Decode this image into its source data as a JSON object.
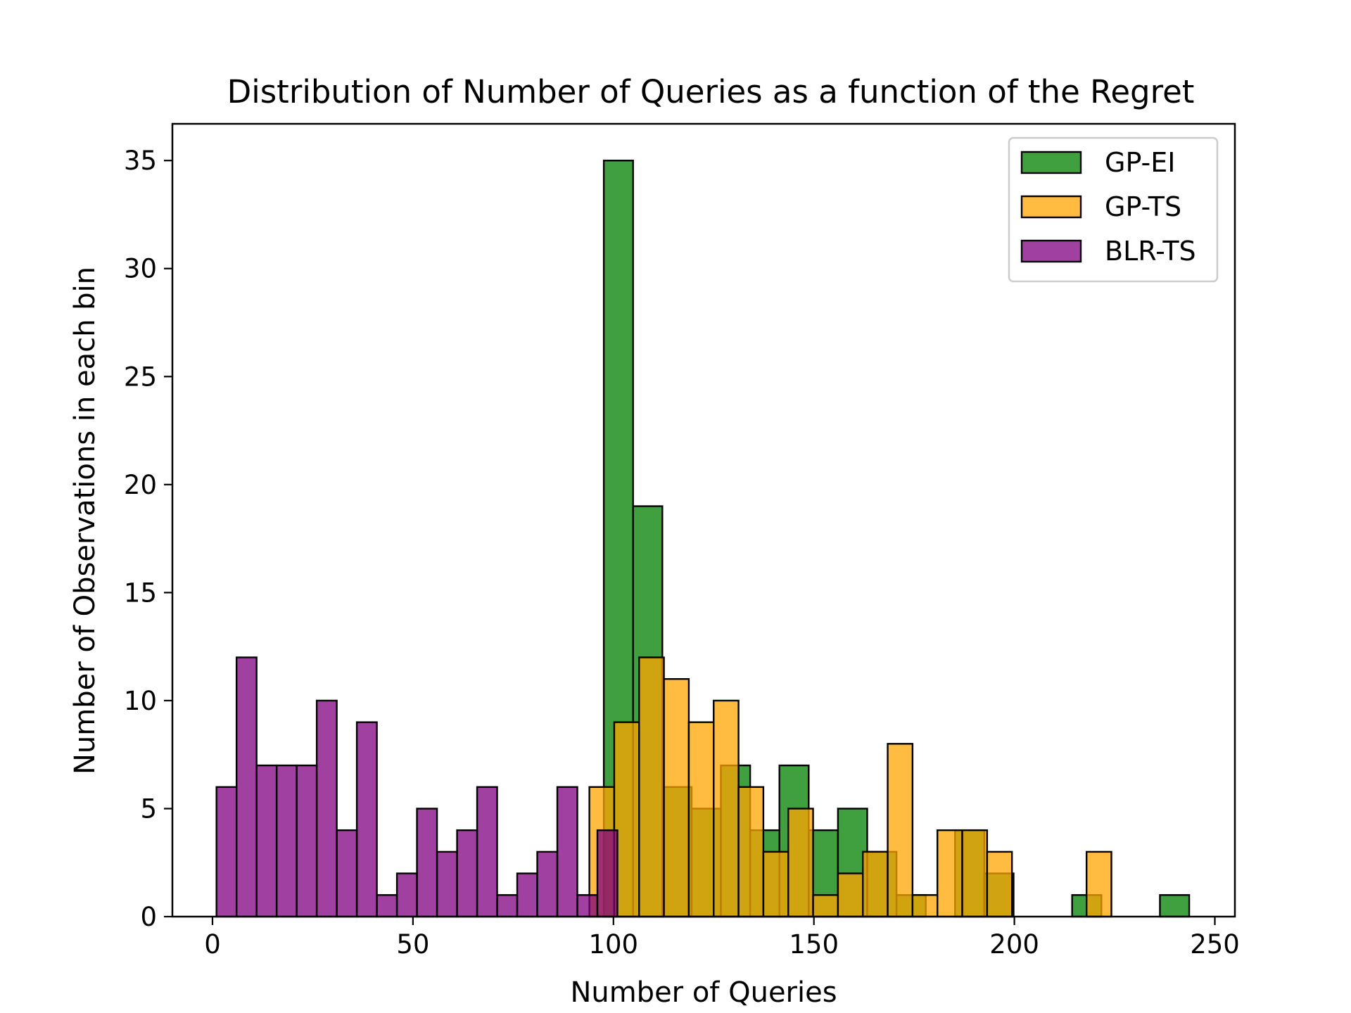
{
  "chart_data": {
    "type": "bar",
    "title": "Distribution of Number of Queries as a function of the Regret",
    "xlabel": "Number of Queries",
    "ylabel": "Number of Observations in each bin",
    "xlim": [
      -10,
      255
    ],
    "ylim": [
      0,
      36.7
    ],
    "xticks": [
      0,
      50,
      100,
      150,
      200,
      250
    ],
    "yticks": [
      0,
      5,
      10,
      15,
      20,
      25,
      30,
      35
    ],
    "grid": false,
    "legend_position": "top-right",
    "series": [
      {
        "name": "GP-EI",
        "color": "#008000",
        "opacity": 0.75,
        "bins": [
          {
            "x0": 97.6,
            "x1": 104.9,
            "value": 35
          },
          {
            "x0": 104.9,
            "x1": 112.2,
            "value": 19
          },
          {
            "x0": 112.2,
            "x1": 119.5,
            "value": 6
          },
          {
            "x0": 119.5,
            "x1": 126.8,
            "value": 5
          },
          {
            "x0": 126.8,
            "x1": 134.1,
            "value": 7
          },
          {
            "x0": 134.1,
            "x1": 141.4,
            "value": 4
          },
          {
            "x0": 141.4,
            "x1": 148.7,
            "value": 7
          },
          {
            "x0": 148.7,
            "x1": 156.0,
            "value": 4
          },
          {
            "x0": 156.0,
            "x1": 163.3,
            "value": 5
          },
          {
            "x0": 163.3,
            "x1": 170.6,
            "value": 3
          },
          {
            "x0": 170.6,
            "x1": 177.9,
            "value": 1
          },
          {
            "x0": 177.9,
            "x1": 185.2,
            "value": 0
          },
          {
            "x0": 185.2,
            "x1": 192.5,
            "value": 4
          },
          {
            "x0": 192.5,
            "x1": 199.8,
            "value": 2
          },
          {
            "x0": 199.8,
            "x1": 207.1,
            "value": 0
          },
          {
            "x0": 207.1,
            "x1": 214.4,
            "value": 0
          },
          {
            "x0": 214.4,
            "x1": 221.7,
            "value": 1
          },
          {
            "x0": 221.7,
            "x1": 229.0,
            "value": 0
          },
          {
            "x0": 229.0,
            "x1": 236.3,
            "value": 0
          },
          {
            "x0": 236.3,
            "x1": 243.6,
            "value": 1
          }
        ]
      },
      {
        "name": "GP-TS",
        "color": "#ffa500",
        "opacity": 0.75,
        "bins": [
          {
            "x0": 94.0,
            "x1": 100.2,
            "value": 6
          },
          {
            "x0": 100.2,
            "x1": 106.4,
            "value": 9
          },
          {
            "x0": 106.4,
            "x1": 112.6,
            "value": 12
          },
          {
            "x0": 112.6,
            "x1": 118.8,
            "value": 11
          },
          {
            "x0": 118.8,
            "x1": 125.0,
            "value": 9
          },
          {
            "x0": 125.0,
            "x1": 131.2,
            "value": 10
          },
          {
            "x0": 131.2,
            "x1": 137.4,
            "value": 6
          },
          {
            "x0": 137.4,
            "x1": 143.6,
            "value": 3
          },
          {
            "x0": 143.6,
            "x1": 149.8,
            "value": 5
          },
          {
            "x0": 149.8,
            "x1": 156.0,
            "value": 1
          },
          {
            "x0": 156.0,
            "x1": 162.2,
            "value": 2
          },
          {
            "x0": 162.2,
            "x1": 168.4,
            "value": 3
          },
          {
            "x0": 168.4,
            "x1": 174.6,
            "value": 8
          },
          {
            "x0": 174.6,
            "x1": 180.8,
            "value": 1
          },
          {
            "x0": 180.8,
            "x1": 187.0,
            "value": 4
          },
          {
            "x0": 187.0,
            "x1": 193.2,
            "value": 4
          },
          {
            "x0": 193.2,
            "x1": 199.4,
            "value": 3
          },
          {
            "x0": 199.4,
            "x1": 205.6,
            "value": 0
          },
          {
            "x0": 205.6,
            "x1": 211.8,
            "value": 0
          },
          {
            "x0": 211.8,
            "x1": 218.0,
            "value": 0
          },
          {
            "x0": 218.0,
            "x1": 224.2,
            "value": 3
          }
        ]
      },
      {
        "name": "BLR-TS",
        "color": "#800080",
        "opacity": 0.75,
        "bins": [
          {
            "x0": 1.0,
            "x1": 6.0,
            "value": 6
          },
          {
            "x0": 6.0,
            "x1": 11.0,
            "value": 12
          },
          {
            "x0": 11.0,
            "x1": 16.0,
            "value": 7
          },
          {
            "x0": 16.0,
            "x1": 21.0,
            "value": 7
          },
          {
            "x0": 21.0,
            "x1": 26.0,
            "value": 7
          },
          {
            "x0": 26.0,
            "x1": 31.0,
            "value": 10
          },
          {
            "x0": 31.0,
            "x1": 36.0,
            "value": 4
          },
          {
            "x0": 36.0,
            "x1": 41.0,
            "value": 9
          },
          {
            "x0": 41.0,
            "x1": 46.0,
            "value": 1
          },
          {
            "x0": 46.0,
            "x1": 51.0,
            "value": 2
          },
          {
            "x0": 51.0,
            "x1": 56.0,
            "value": 5
          },
          {
            "x0": 56.0,
            "x1": 61.0,
            "value": 3
          },
          {
            "x0": 61.0,
            "x1": 66.0,
            "value": 4
          },
          {
            "x0": 66.0,
            "x1": 71.0,
            "value": 6
          },
          {
            "x0": 71.0,
            "x1": 76.0,
            "value": 1
          },
          {
            "x0": 76.0,
            "x1": 81.0,
            "value": 2
          },
          {
            "x0": 81.0,
            "x1": 86.0,
            "value": 3
          },
          {
            "x0": 86.0,
            "x1": 91.0,
            "value": 6
          },
          {
            "x0": 91.0,
            "x1": 96.0,
            "value": 1
          },
          {
            "x0": 96.0,
            "x1": 101.0,
            "value": 4
          }
        ]
      }
    ]
  }
}
